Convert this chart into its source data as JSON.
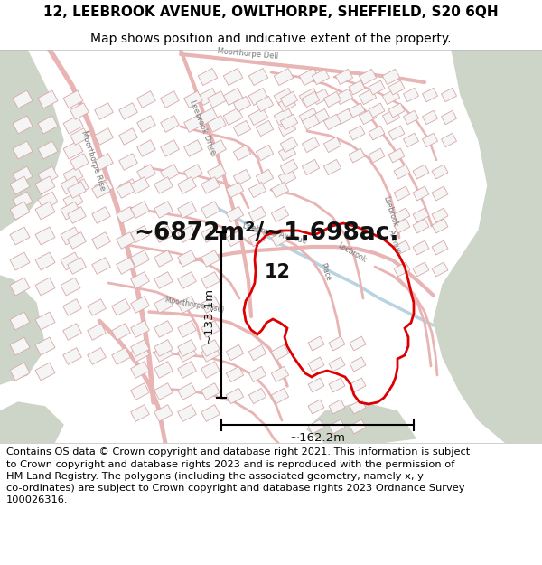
{
  "title_line1": "12, LEEBROOK AVENUE, OWLTHORPE, SHEFFIELD, S20 6QH",
  "title_line2": "Map shows position and indicative extent of the property.",
  "area_text": "~6872m²/~1.698ac.",
  "label_12": "12",
  "dim_vertical": "~133.1m",
  "dim_horizontal": "~162.2m",
  "footer_text": "Contains OS data © Crown copyright and database right 2021. This information is subject to Crown copyright and database rights 2023 and is reproduced with the permission of HM Land Registry. The polygons (including the associated geometry, namely x, y co-ordinates) are subject to Crown copyright and database rights 2023 Ordnance Survey 100026316.",
  "bg_map_color": "#f2f2f0",
  "bg_green_color": "#ccd5c8",
  "road_color": "#e8b4b4",
  "building_edge_color": "#d8a8a8",
  "building_fill": "#f5f5f5",
  "red_polygon_color": "#dd0000",
  "black_color": "#111111",
  "water_color": "#b8d4e0",
  "title_fontsize": 11,
  "subtitle_fontsize": 10,
  "area_fontsize": 19,
  "label_fontsize": 15,
  "dim_fontsize": 9.5,
  "footer_fontsize": 8.2,
  "road_label_color": "#777777",
  "road_label_fontsize": 6.0
}
